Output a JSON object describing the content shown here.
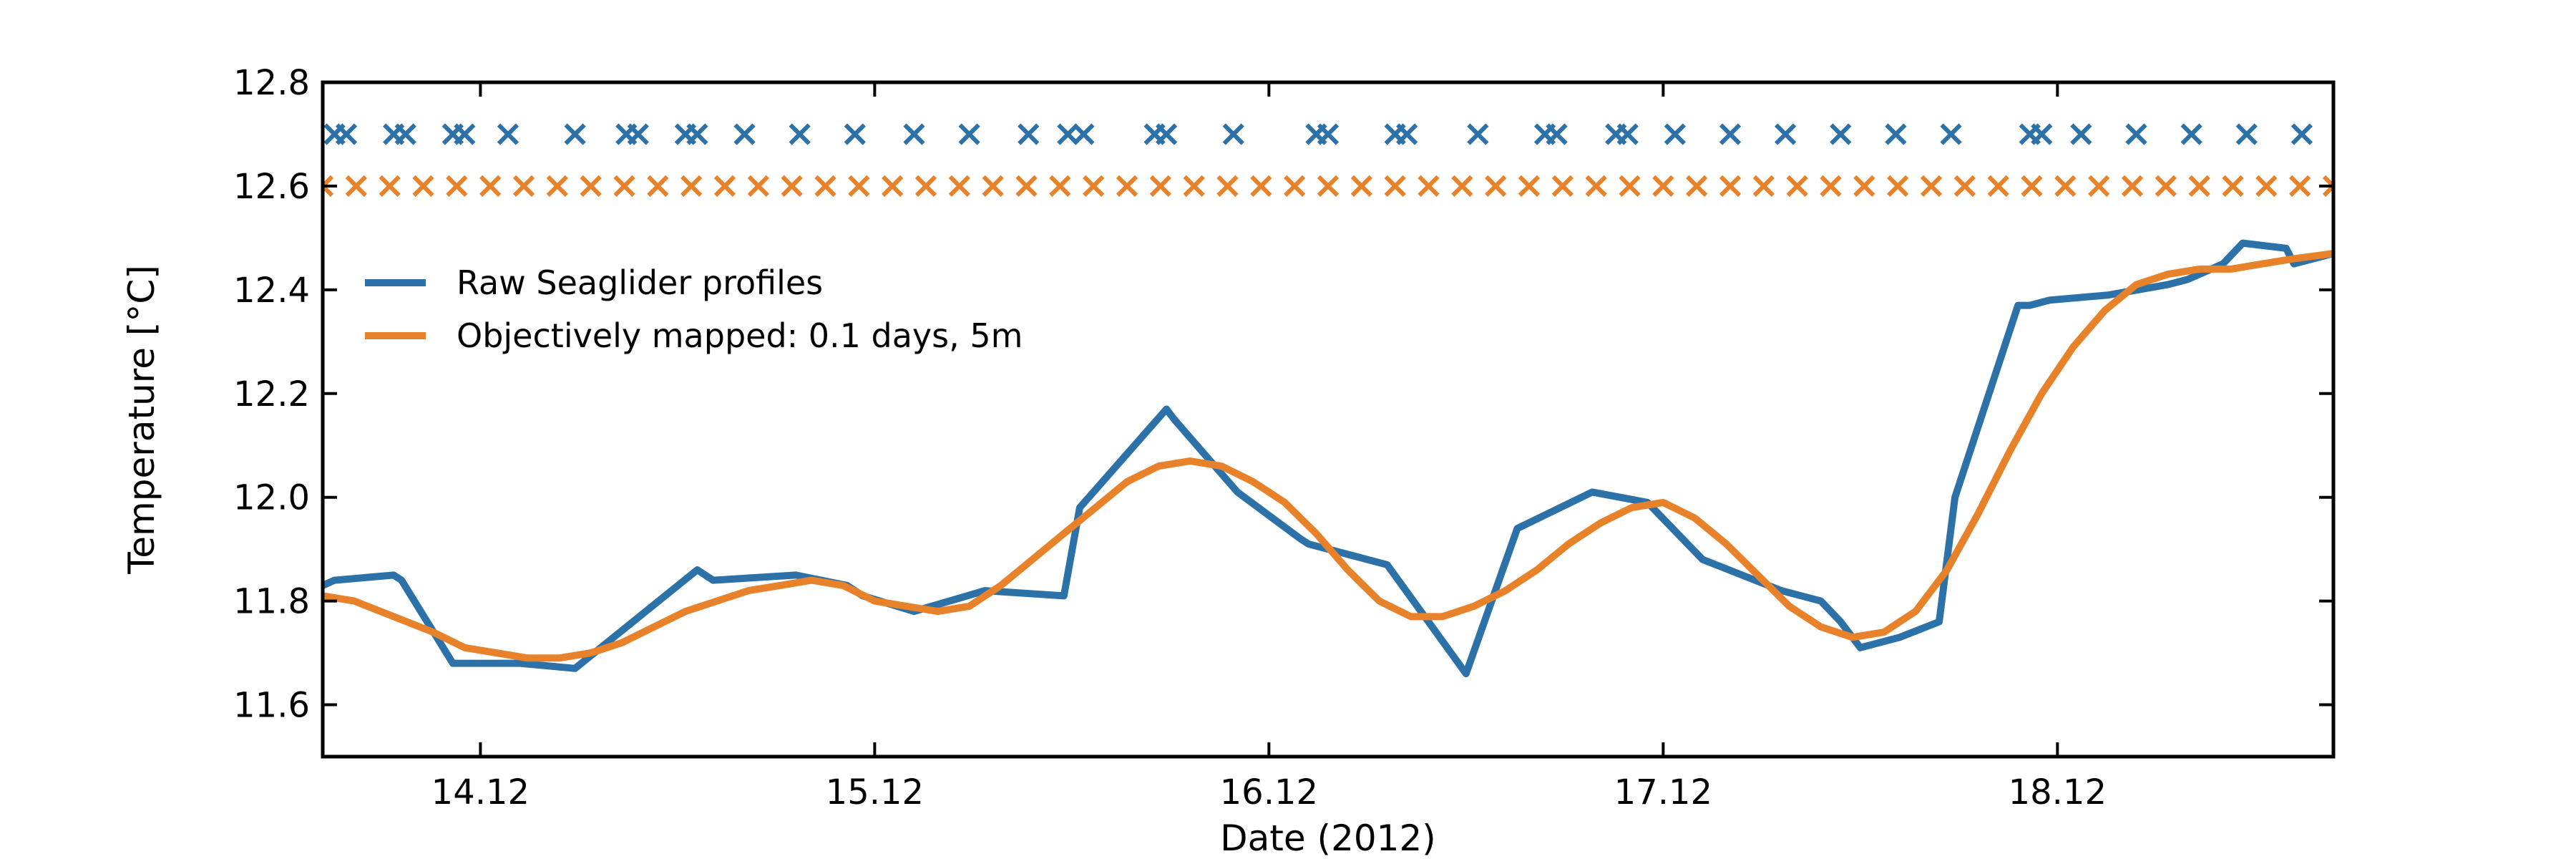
{
  "chart_data": {
    "type": "line",
    "xlabel": "Date (2012)",
    "ylabel": "Temperature [°C]",
    "xlim": [
      13.6,
      18.7
    ],
    "ylim": [
      11.5,
      12.8
    ],
    "xticks": [
      14,
      15,
      16,
      17,
      18
    ],
    "xtick_labels": [
      "14.12",
      "15.12",
      "16.12",
      "17.12",
      "18.12"
    ],
    "yticks": [
      11.6,
      11.8,
      12.0,
      12.2,
      12.4,
      12.6,
      12.8
    ],
    "ytick_labels": [
      "11.6",
      "11.8",
      "12.0",
      "12.2",
      "12.4",
      "12.6",
      "12.8"
    ],
    "grid": false,
    "legend_position": "upper-left",
    "series": [
      {
        "name": "Raw Seaglider profiles",
        "color": "#2c72a8",
        "x": [
          13.6,
          13.63,
          13.78,
          13.8,
          13.93,
          14.1,
          14.24,
          14.55,
          14.59,
          14.8,
          14.93,
          14.97,
          15.1,
          15.28,
          15.48,
          15.52,
          15.74,
          15.76,
          15.92,
          16.08,
          16.1,
          16.3,
          16.5,
          16.63,
          16.82,
          16.96,
          17.1,
          17.2,
          17.3,
          17.4,
          17.45,
          17.5,
          17.6,
          17.7,
          17.74,
          17.9,
          17.93,
          17.98,
          18.13,
          18.28,
          18.33,
          18.42,
          18.47,
          18.58,
          18.6,
          18.7
        ],
        "y": [
          11.83,
          11.84,
          11.85,
          11.84,
          11.68,
          11.68,
          11.67,
          11.86,
          11.84,
          11.85,
          11.83,
          11.81,
          11.78,
          11.82,
          11.81,
          11.98,
          12.17,
          12.15,
          12.01,
          11.92,
          11.91,
          11.87,
          11.66,
          11.94,
          12.01,
          11.99,
          11.88,
          11.85,
          11.82,
          11.8,
          11.76,
          11.71,
          11.73,
          11.76,
          12.0,
          12.37,
          12.37,
          12.38,
          12.39,
          12.41,
          12.42,
          12.45,
          12.49,
          12.48,
          12.45,
          12.47
        ]
      },
      {
        "name": "Objectively mapped: 0.1 days, 5m",
        "color": "#e8822a",
        "x": [
          13.6,
          13.68,
          13.78,
          13.88,
          13.96,
          14.04,
          14.12,
          14.2,
          14.28,
          14.36,
          14.44,
          14.52,
          14.6,
          14.68,
          14.76,
          14.84,
          14.92,
          15.0,
          15.08,
          15.16,
          15.24,
          15.32,
          15.4,
          15.48,
          15.56,
          15.64,
          15.72,
          15.8,
          15.88,
          15.96,
          16.04,
          16.12,
          16.2,
          16.28,
          16.36,
          16.44,
          16.52,
          16.6,
          16.68,
          16.76,
          16.84,
          16.92,
          17.0,
          17.08,
          17.16,
          17.24,
          17.32,
          17.4,
          17.48,
          17.56,
          17.64,
          17.72,
          17.8,
          17.88,
          17.96,
          18.04,
          18.12,
          18.2,
          18.28,
          18.36,
          18.44,
          18.52,
          18.6,
          18.7
        ],
        "y": [
          11.81,
          11.8,
          11.77,
          11.74,
          11.71,
          11.7,
          11.69,
          11.69,
          11.7,
          11.72,
          11.75,
          11.78,
          11.8,
          11.82,
          11.83,
          11.84,
          11.83,
          11.8,
          11.79,
          11.78,
          11.79,
          11.83,
          11.88,
          11.93,
          11.98,
          12.03,
          12.06,
          12.07,
          12.06,
          12.03,
          11.99,
          11.93,
          11.86,
          11.8,
          11.77,
          11.77,
          11.79,
          11.82,
          11.86,
          11.91,
          11.95,
          11.98,
          11.99,
          11.96,
          11.91,
          11.85,
          11.79,
          11.75,
          11.73,
          11.74,
          11.78,
          11.86,
          11.97,
          12.09,
          12.2,
          12.29,
          12.36,
          12.41,
          12.43,
          12.44,
          12.44,
          12.45,
          12.46,
          12.47
        ]
      }
    ],
    "markers": [
      {
        "name": "Raw Seaglider profiles",
        "symbol": "x",
        "color": "#2c72a8",
        "y": 12.7,
        "x": [
          13.63,
          13.66,
          13.78,
          13.81,
          13.93,
          13.96,
          14.07,
          14.24,
          14.37,
          14.4,
          14.52,
          14.55,
          14.67,
          14.81,
          14.95,
          15.1,
          15.24,
          15.39,
          15.49,
          15.53,
          15.71,
          15.74,
          15.91,
          16.12,
          16.15,
          16.32,
          16.35,
          16.53,
          16.7,
          16.73,
          16.88,
          16.91,
          17.03,
          17.17,
          17.31,
          17.45,
          17.59,
          17.73,
          17.93,
          17.96,
          18.06,
          18.2,
          18.34,
          18.48,
          18.62
        ]
      },
      {
        "name": "Objectively mapped: 0.1 days, 5m",
        "symbol": "x",
        "color": "#e8822a",
        "y": 12.6,
        "x_start": 13.6,
        "x_step": 0.085,
        "count": 61
      }
    ]
  }
}
